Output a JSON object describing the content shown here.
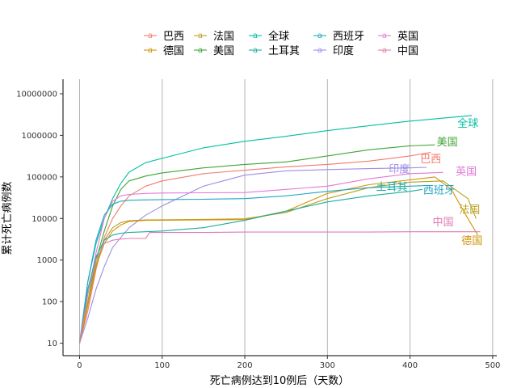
{
  "chart_data": {
    "type": "line",
    "xlabel": "死亡病例达到10例后（天数）",
    "ylabel": "累计死亡病例数",
    "xlim": [
      -20,
      505
    ],
    "ylim_log10": [
      0.7,
      7.35
    ],
    "y_scale": "log10",
    "x_ticks": [
      0,
      100,
      200,
      300,
      400,
      500
    ],
    "y_ticks": [
      10,
      100,
      1000,
      10000,
      100000,
      1000000,
      10000000
    ],
    "y_tick_labels": [
      "10",
      "100",
      "1000",
      "10000",
      "100000",
      "1000000",
      "10000000"
    ],
    "grid": {
      "vertical_major": true,
      "horizontal": false
    },
    "legend_position": "top",
    "legend_order": [
      "巴西",
      "法国",
      "全球",
      "西班牙",
      "英国",
      "德国",
      "美国",
      "土耳其",
      "印度",
      "中国"
    ],
    "series": [
      {
        "name": "全球",
        "color": "#00BFA0",
        "label_at": [
          470,
          2000000
        ],
        "points": [
          [
            0,
            10
          ],
          [
            10,
            300
          ],
          [
            20,
            2500
          ],
          [
            30,
            10000
          ],
          [
            40,
            30000
          ],
          [
            50,
            70000
          ],
          [
            60,
            130000
          ],
          [
            80,
            220000
          ],
          [
            100,
            280000
          ],
          [
            150,
            500000
          ],
          [
            200,
            720000
          ],
          [
            250,
            950000
          ],
          [
            300,
            1300000
          ],
          [
            350,
            1700000
          ],
          [
            400,
            2200000
          ],
          [
            450,
            2700000
          ],
          [
            475,
            3000000
          ]
        ]
      },
      {
        "name": "美国",
        "color": "#3FA535",
        "label_at": [
          445,
          720000
        ],
        "points": [
          [
            0,
            10
          ],
          [
            10,
            100
          ],
          [
            20,
            1000
          ],
          [
            30,
            5000
          ],
          [
            40,
            20000
          ],
          [
            50,
            50000
          ],
          [
            60,
            80000
          ],
          [
            80,
            105000
          ],
          [
            100,
            125000
          ],
          [
            150,
            165000
          ],
          [
            200,
            200000
          ],
          [
            250,
            230000
          ],
          [
            300,
            320000
          ],
          [
            350,
            450000
          ],
          [
            400,
            560000
          ],
          [
            430,
            590000
          ]
        ]
      },
      {
        "name": "巴西",
        "color": "#F07C6E",
        "label_at": [
          425,
          280000
        ],
        "points": [
          [
            0,
            10
          ],
          [
            10,
            60
          ],
          [
            20,
            600
          ],
          [
            30,
            3500
          ],
          [
            40,
            10000
          ],
          [
            50,
            20000
          ],
          [
            60,
            35000
          ],
          [
            80,
            60000
          ],
          [
            100,
            80000
          ],
          [
            150,
            120000
          ],
          [
            200,
            145000
          ],
          [
            250,
            175000
          ],
          [
            300,
            200000
          ],
          [
            350,
            240000
          ],
          [
            400,
            320000
          ],
          [
            425,
            390000
          ]
        ]
      },
      {
        "name": "英国",
        "color": "#E37AD6",
        "label_at": [
          468,
          140000
        ],
        "points": [
          [
            0,
            10
          ],
          [
            10,
            150
          ],
          [
            20,
            1500
          ],
          [
            30,
            10000
          ],
          [
            40,
            26000
          ],
          [
            50,
            35000
          ],
          [
            60,
            38000
          ],
          [
            80,
            40000
          ],
          [
            100,
            41000
          ],
          [
            150,
            41500
          ],
          [
            200,
            42000
          ],
          [
            250,
            50000
          ],
          [
            300,
            60000
          ],
          [
            350,
            90000
          ],
          [
            400,
            120000
          ],
          [
            440,
            128000
          ]
        ]
      },
      {
        "name": "印度",
        "color": "#9E8CE6",
        "label_at": [
          387,
          160000
        ],
        "points": [
          [
            0,
            10
          ],
          [
            10,
            40
          ],
          [
            20,
            200
          ],
          [
            30,
            700
          ],
          [
            40,
            2000
          ],
          [
            50,
            3500
          ],
          [
            60,
            6000
          ],
          [
            80,
            12000
          ],
          [
            100,
            20000
          ],
          [
            150,
            60000
          ],
          [
            200,
            110000
          ],
          [
            250,
            140000
          ],
          [
            300,
            150000
          ],
          [
            350,
            158000
          ],
          [
            400,
            165000
          ],
          [
            420,
            170000
          ]
        ]
      },
      {
        "name": "法国",
        "color": "#B8A020",
        "label_at": [
          472,
          17000
        ],
        "points": [
          [
            0,
            10
          ],
          [
            10,
            100
          ],
          [
            20,
            800
          ],
          [
            30,
            3000
          ],
          [
            40,
            6000
          ],
          [
            50,
            8000
          ],
          [
            60,
            8800
          ],
          [
            80,
            9200
          ],
          [
            100,
            9300
          ],
          [
            150,
            9500
          ],
          [
            200,
            9800
          ],
          [
            250,
            14000
          ],
          [
            300,
            30000
          ],
          [
            350,
            55000
          ],
          [
            400,
            75000
          ],
          [
            440,
            80000
          ],
          [
            470,
            30000
          ],
          [
            480,
            10000
          ]
        ]
      },
      {
        "name": "德国",
        "color": "#D0940A",
        "label_at": [
          475,
          3000
        ],
        "points": [
          [
            0,
            10
          ],
          [
            10,
            80
          ],
          [
            20,
            700
          ],
          [
            30,
            2500
          ],
          [
            40,
            5000
          ],
          [
            50,
            7000
          ],
          [
            60,
            8500
          ],
          [
            80,
            9000
          ],
          [
            100,
            9100
          ],
          [
            150,
            9200
          ],
          [
            200,
            9400
          ],
          [
            250,
            15000
          ],
          [
            300,
            40000
          ],
          [
            350,
            65000
          ],
          [
            400,
            85000
          ],
          [
            430,
            100000
          ],
          [
            450,
            50000
          ],
          [
            470,
            10000
          ],
          [
            482,
            4000
          ]
        ]
      },
      {
        "name": "西班牙",
        "color": "#1FA6C4",
        "label_at": [
          435,
          50000
        ],
        "points": [
          [
            0,
            10
          ],
          [
            10,
            300
          ],
          [
            20,
            3000
          ],
          [
            30,
            12000
          ],
          [
            40,
            22000
          ],
          [
            50,
            26000
          ],
          [
            60,
            27500
          ],
          [
            80,
            28000
          ],
          [
            100,
            28500
          ],
          [
            150,
            29000
          ],
          [
            200,
            30000
          ],
          [
            250,
            35000
          ],
          [
            300,
            45000
          ],
          [
            350,
            55000
          ],
          [
            400,
            60000
          ],
          [
            420,
            62000
          ]
        ]
      },
      {
        "name": "土耳其",
        "color": "#1CAEA0",
        "label_at": [
          378,
          60000
        ],
        "points": [
          [
            0,
            10
          ],
          [
            10,
            200
          ],
          [
            20,
            1200
          ],
          [
            30,
            3000
          ],
          [
            40,
            4000
          ],
          [
            50,
            4400
          ],
          [
            60,
            4600
          ],
          [
            80,
            4800
          ],
          [
            100,
            5000
          ],
          [
            150,
            6000
          ],
          [
            200,
            9000
          ],
          [
            250,
            15000
          ],
          [
            300,
            25000
          ],
          [
            350,
            35000
          ],
          [
            400,
            45000
          ],
          [
            415,
            50000
          ]
        ]
      },
      {
        "name": "中国",
        "color": "#E07AB0",
        "label_at": [
          440,
          8500
        ],
        "points": [
          [
            0,
            10
          ],
          [
            10,
            150
          ],
          [
            20,
            1000
          ],
          [
            30,
            2500
          ],
          [
            40,
            3000
          ],
          [
            50,
            3200
          ],
          [
            60,
            3300
          ],
          [
            80,
            3300
          ],
          [
            85,
            4600
          ],
          [
            100,
            4600
          ],
          [
            150,
            4600
          ],
          [
            200,
            4700
          ],
          [
            250,
            4700
          ],
          [
            300,
            4700
          ],
          [
            350,
            4700
          ],
          [
            400,
            4800
          ],
          [
            450,
            4800
          ],
          [
            485,
            4800
          ]
        ]
      }
    ]
  }
}
